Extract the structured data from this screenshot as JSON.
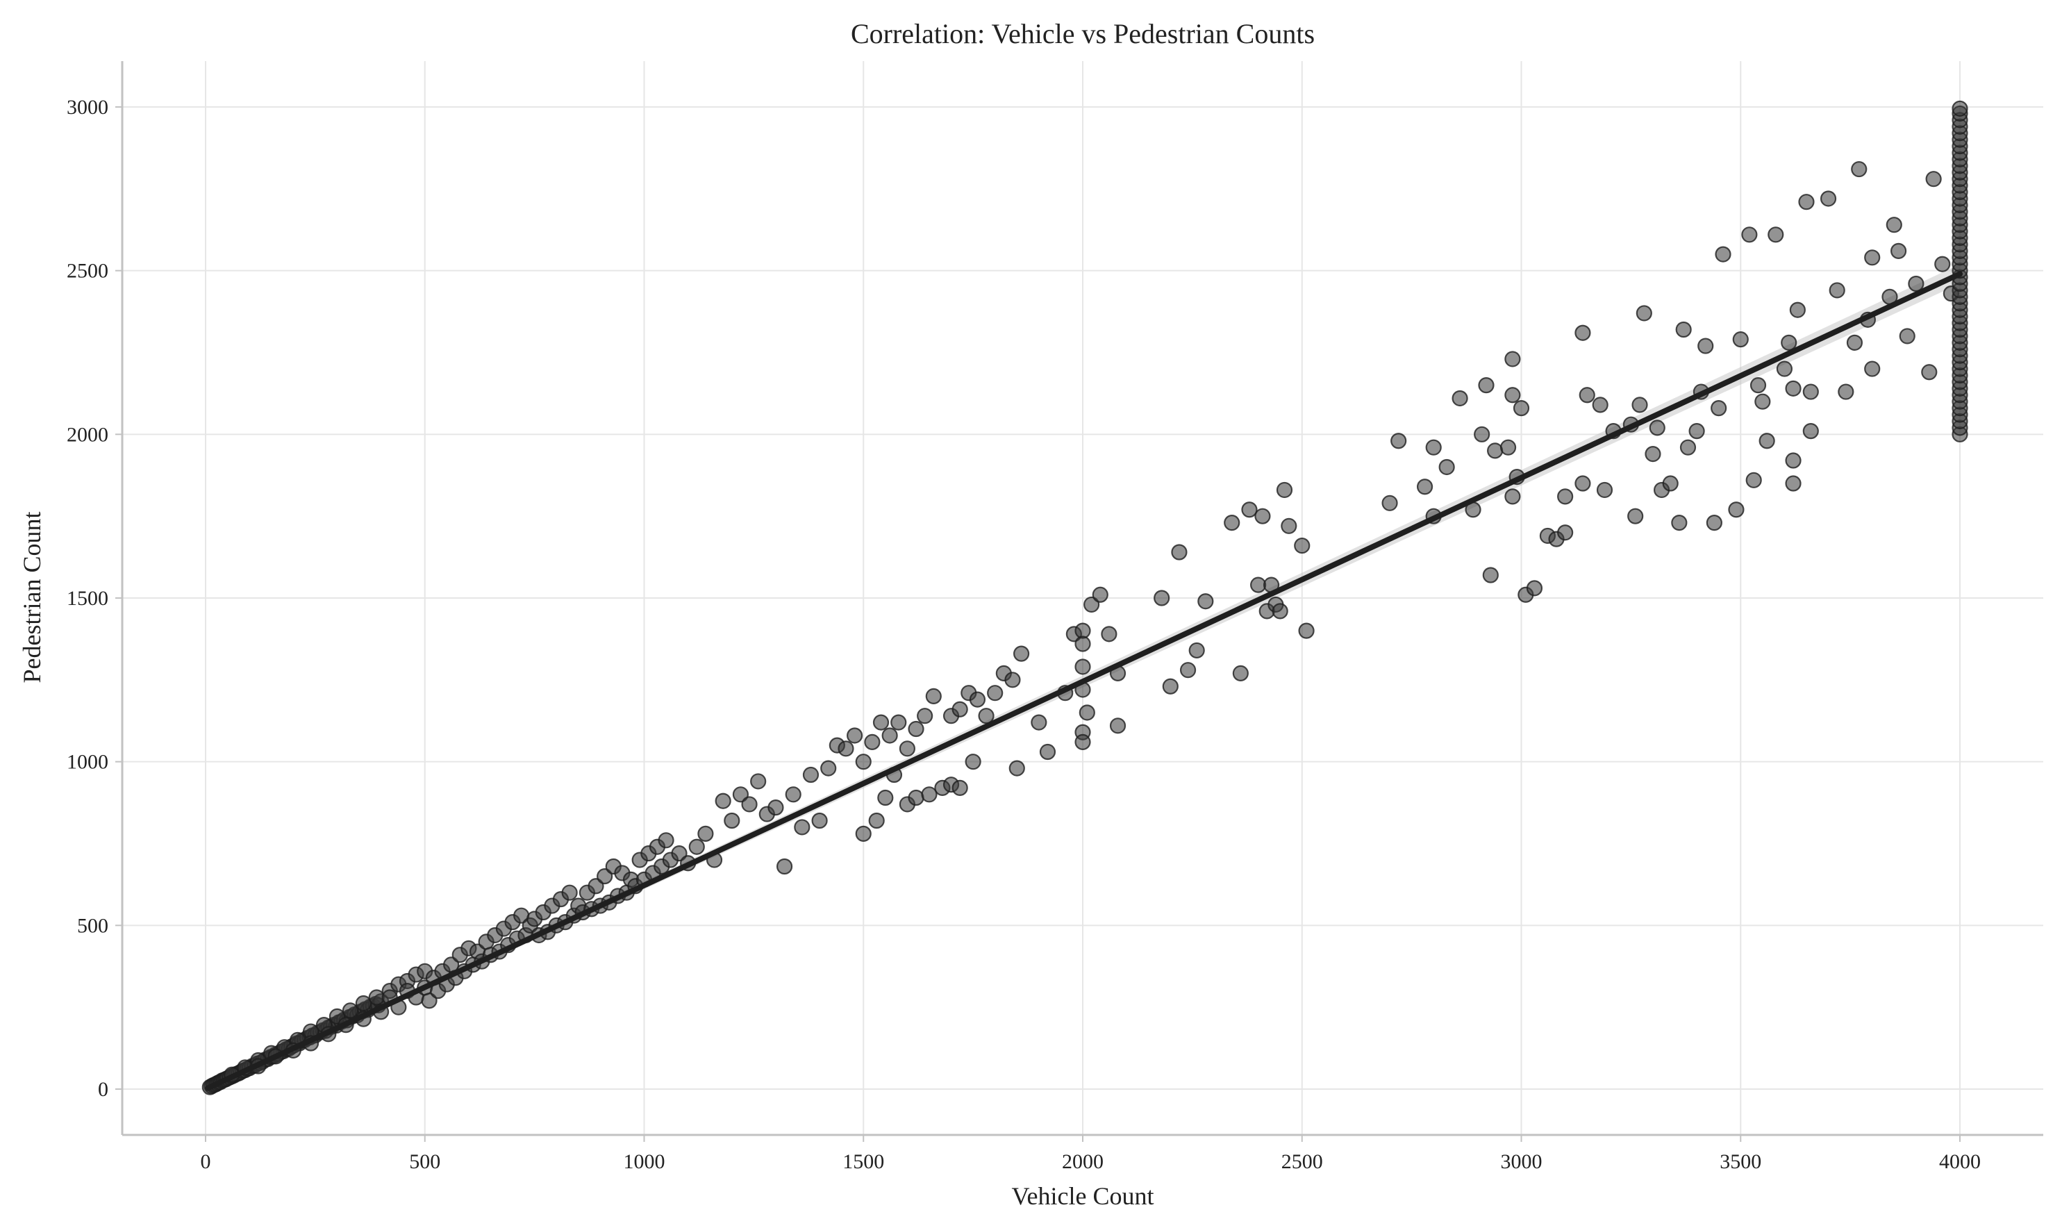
{
  "chart_data": {
    "type": "scatter",
    "title": "Correlation: Vehicle vs Pedestrian Counts",
    "xlabel": "Vehicle Count",
    "ylabel": "Pedestrian Count",
    "xlim": [
      -190,
      4190
    ],
    "ylim": [
      -140,
      3140
    ],
    "xticks": [
      0,
      500,
      1000,
      1500,
      2000,
      2500,
      3000,
      3500,
      4000
    ],
    "yticks": [
      0,
      500,
      1000,
      1500,
      2000,
      2500,
      3000
    ],
    "grid": true,
    "legend": "none",
    "colors": {
      "points": "#3a3a3a",
      "regression": "#1f1f1f",
      "band": "#bdbdbd"
    },
    "regression": {
      "x": [
        5,
        4000
      ],
      "y": [
        3,
        2490
      ]
    },
    "points": [
      [
        10,
        6
      ],
      [
        14,
        9
      ],
      [
        18,
        12
      ],
      [
        22,
        14
      ],
      [
        26,
        17
      ],
      [
        30,
        20
      ],
      [
        34,
        22
      ],
      [
        38,
        26
      ],
      [
        42,
        28
      ],
      [
        46,
        30
      ],
      [
        50,
        33
      ],
      [
        55,
        36
      ],
      [
        60,
        39
      ],
      [
        65,
        42
      ],
      [
        70,
        46
      ],
      [
        75,
        48
      ],
      [
        80,
        52
      ],
      [
        85,
        56
      ],
      [
        90,
        58
      ],
      [
        95,
        62
      ],
      [
        100,
        64
      ],
      [
        106,
        70
      ],
      [
        112,
        72
      ],
      [
        118,
        78
      ],
      [
        124,
        80
      ],
      [
        130,
        84
      ],
      [
        136,
        90
      ],
      [
        142,
        92
      ],
      [
        148,
        98
      ],
      [
        154,
        100
      ],
      [
        160,
        106
      ],
      [
        166,
        108
      ],
      [
        172,
        114
      ],
      [
        178,
        116
      ],
      [
        184,
        122
      ],
      [
        190,
        124
      ],
      [
        196,
        130
      ],
      [
        202,
        134
      ],
      [
        208,
        140
      ],
      [
        214,
        140
      ],
      [
        220,
        148
      ],
      [
        226,
        150
      ],
      [
        232,
        156
      ],
      [
        238,
        158
      ],
      [
        244,
        164
      ],
      [
        250,
        164
      ],
      [
        256,
        172
      ],
      [
        262,
        174
      ],
      [
        268,
        180
      ],
      [
        274,
        178
      ],
      [
        280,
        188
      ],
      [
        286,
        190
      ],
      [
        292,
        196
      ],
      [
        298,
        194
      ],
      [
        304,
        204
      ],
      [
        310,
        206
      ],
      [
        316,
        212
      ],
      [
        322,
        210
      ],
      [
        328,
        220
      ],
      [
        334,
        222
      ],
      [
        340,
        228
      ],
      [
        346,
        226
      ],
      [
        352,
        236
      ],
      [
        358,
        238
      ],
      [
        364,
        244
      ],
      [
        370,
        242
      ],
      [
        376,
        252
      ],
      [
        382,
        254
      ],
      [
        388,
        260
      ],
      [
        394,
        256
      ],
      [
        400,
        268
      ],
      [
        60,
        44
      ],
      [
        90,
        66
      ],
      [
        120,
        88
      ],
      [
        150,
        110
      ],
      [
        180,
        128
      ],
      [
        210,
        150
      ],
      [
        240,
        176
      ],
      [
        270,
        196
      ],
      [
        300,
        222
      ],
      [
        330,
        240
      ],
      [
        360,
        262
      ],
      [
        390,
        280
      ],
      [
        120,
        70
      ],
      [
        160,
        100
      ],
      [
        200,
        118
      ],
      [
        240,
        140
      ],
      [
        280,
        168
      ],
      [
        320,
        196
      ],
      [
        360,
        214
      ],
      [
        400,
        236
      ],
      [
        420,
        300
      ],
      [
        440,
        320
      ],
      [
        460,
        330
      ],
      [
        480,
        350
      ],
      [
        500,
        360
      ],
      [
        420,
        280
      ],
      [
        440,
        250
      ],
      [
        460,
        300
      ],
      [
        480,
        280
      ],
      [
        500,
        310
      ],
      [
        510,
        270
      ],
      [
        520,
        340
      ],
      [
        530,
        300
      ],
      [
        540,
        360
      ],
      [
        550,
        320
      ],
      [
        560,
        380
      ],
      [
        570,
        340
      ],
      [
        580,
        410
      ],
      [
        590,
        360
      ],
      [
        600,
        430
      ],
      [
        610,
        380
      ],
      [
        620,
        420
      ],
      [
        630,
        390
      ],
      [
        640,
        450
      ],
      [
        650,
        410
      ],
      [
        660,
        470
      ],
      [
        670,
        420
      ],
      [
        680,
        490
      ],
      [
        690,
        440
      ],
      [
        700,
        510
      ],
      [
        710,
        460
      ],
      [
        720,
        530
      ],
      [
        730,
        470
      ],
      [
        740,
        500
      ],
      [
        750,
        520
      ],
      [
        760,
        470
      ],
      [
        770,
        540
      ],
      [
        780,
        480
      ],
      [
        790,
        560
      ],
      [
        800,
        500
      ],
      [
        810,
        580
      ],
      [
        820,
        510
      ],
      [
        830,
        600
      ],
      [
        840,
        530
      ],
      [
        850,
        560
      ],
      [
        860,
        540
      ],
      [
        870,
        600
      ],
      [
        880,
        550
      ],
      [
        890,
        620
      ],
      [
        900,
        560
      ],
      [
        910,
        650
      ],
      [
        920,
        570
      ],
      [
        930,
        680
      ],
      [
        940,
        590
      ],
      [
        950,
        660
      ],
      [
        960,
        600
      ],
      [
        970,
        640
      ],
      [
        980,
        620
      ],
      [
        990,
        700
      ],
      [
        1000,
        640
      ],
      [
        1010,
        720
      ],
      [
        1020,
        660
      ],
      [
        1030,
        740
      ],
      [
        1040,
        680
      ],
      [
        1050,
        760
      ],
      [
        1060,
        700
      ],
      [
        1080,
        720
      ],
      [
        1100,
        690
      ],
      [
        1120,
        740
      ],
      [
        1140,
        780
      ],
      [
        1160,
        700
      ],
      [
        1180,
        880
      ],
      [
        1200,
        820
      ],
      [
        1220,
        900
      ],
      [
        1240,
        870
      ],
      [
        1260,
        940
      ],
      [
        1280,
        840
      ],
      [
        1300,
        860
      ],
      [
        1320,
        680
      ],
      [
        1340,
        900
      ],
      [
        1360,
        800
      ],
      [
        1380,
        960
      ],
      [
        1400,
        820
      ],
      [
        1420,
        980
      ],
      [
        1440,
        1050
      ],
      [
        1460,
        1040
      ],
      [
        1480,
        1080
      ],
      [
        1500,
        1000
      ],
      [
        1520,
        1060
      ],
      [
        1540,
        1120
      ],
      [
        1560,
        1080
      ],
      [
        1580,
        1120
      ],
      [
        1600,
        1040
      ],
      [
        1620,
        1100
      ],
      [
        1640,
        1140
      ],
      [
        1660,
        1200
      ],
      [
        1700,
        1140
      ],
      [
        1720,
        1160
      ],
      [
        1740,
        1210
      ],
      [
        1760,
        1190
      ],
      [
        1780,
        1140
      ],
      [
        1800,
        1210
      ],
      [
        1820,
        1270
      ],
      [
        1840,
        1250
      ],
      [
        1860,
        1330
      ],
      [
        1500,
        780
      ],
      [
        1530,
        820
      ],
      [
        1550,
        890
      ],
      [
        1570,
        960
      ],
      [
        1600,
        870
      ],
      [
        1620,
        890
      ],
      [
        1650,
        900
      ],
      [
        1680,
        920
      ],
      [
        1700,
        930
      ],
      [
        1720,
        920
      ],
      [
        1750,
        1000
      ],
      [
        1850,
        980
      ],
      [
        1900,
        1120
      ],
      [
        1920,
        1030
      ],
      [
        1960,
        1210
      ],
      [
        1980,
        1390
      ],
      [
        2000,
        1400
      ],
      [
        2000,
        1360
      ],
      [
        2000,
        1290
      ],
      [
        2000,
        1220
      ],
      [
        2000,
        1090
      ],
      [
        2000,
        1060
      ],
      [
        2010,
        1150
      ],
      [
        2020,
        1480
      ],
      [
        2040,
        1510
      ],
      [
        2060,
        1390
      ],
      [
        2080,
        1270
      ],
      [
        2080,
        1110
      ],
      [
        2180,
        1500
      ],
      [
        2200,
        1230
      ],
      [
        2220,
        1640
      ],
      [
        2240,
        1280
      ],
      [
        2260,
        1340
      ],
      [
        2280,
        1490
      ],
      [
        2340,
        1730
      ],
      [
        2360,
        1270
      ],
      [
        2380,
        1770
      ],
      [
        2400,
        1540
      ],
      [
        2410,
        1750
      ],
      [
        2420,
        1460
      ],
      [
        2430,
        1540
      ],
      [
        2440,
        1480
      ],
      [
        2450,
        1460
      ],
      [
        2460,
        1830
      ],
      [
        2470,
        1720
      ],
      [
        2500,
        1660
      ],
      [
        2510,
        1400
      ],
      [
        2700,
        1790
      ],
      [
        2720,
        1980
      ],
      [
        2780,
        1840
      ],
      [
        2800,
        1960
      ],
      [
        2800,
        1750
      ],
      [
        2830,
        1900
      ],
      [
        2860,
        2110
      ],
      [
        2890,
        1770
      ],
      [
        2910,
        2000
      ],
      [
        2920,
        2150
      ],
      [
        2930,
        1570
      ],
      [
        2940,
        1950
      ],
      [
        2970,
        1960
      ],
      [
        2980,
        2120
      ],
      [
        2980,
        2230
      ],
      [
        2980,
        1810
      ],
      [
        2990,
        1870
      ],
      [
        3000,
        2080
      ],
      [
        3010,
        1510
      ],
      [
        3030,
        1530
      ],
      [
        3060,
        1690
      ],
      [
        3080,
        1680
      ],
      [
        3100,
        1700
      ],
      [
        3100,
        1810
      ],
      [
        3140,
        1850
      ],
      [
        3140,
        2310
      ],
      [
        3150,
        2120
      ],
      [
        3180,
        2090
      ],
      [
        3190,
        1830
      ],
      [
        3210,
        2010
      ],
      [
        3250,
        2030
      ],
      [
        3260,
        1750
      ],
      [
        3270,
        2090
      ],
      [
        3280,
        2370
      ],
      [
        3300,
        1940
      ],
      [
        3310,
        2020
      ],
      [
        3320,
        1830
      ],
      [
        3340,
        1850
      ],
      [
        3360,
        1730
      ],
      [
        3370,
        2320
      ],
      [
        3380,
        1960
      ],
      [
        3400,
        2010
      ],
      [
        3410,
        2130
      ],
      [
        3420,
        2270
      ],
      [
        3440,
        1730
      ],
      [
        3450,
        2080
      ],
      [
        3460,
        2550
      ],
      [
        3490,
        1770
      ],
      [
        3500,
        2290
      ],
      [
        3520,
        2610
      ],
      [
        3530,
        1860
      ],
      [
        3540,
        2150
      ],
      [
        3550,
        2100
      ],
      [
        3560,
        1980
      ],
      [
        3580,
        2610
      ],
      [
        3600,
        2200
      ],
      [
        3610,
        2280
      ],
      [
        3620,
        1920
      ],
      [
        3620,
        1850
      ],
      [
        3620,
        2140
      ],
      [
        3630,
        2380
      ],
      [
        3650,
        2710
      ],
      [
        3660,
        2130
      ],
      [
        3660,
        2010
      ],
      [
        3700,
        2720
      ],
      [
        3720,
        2440
      ],
      [
        3740,
        2130
      ],
      [
        3760,
        2280
      ],
      [
        3770,
        2810
      ],
      [
        3790,
        2350
      ],
      [
        3800,
        2540
      ],
      [
        3800,
        2200
      ],
      [
        3840,
        2420
      ],
      [
        3850,
        2640
      ],
      [
        3860,
        2560
      ],
      [
        3880,
        2300
      ],
      [
        3900,
        2460
      ],
      [
        3930,
        2190
      ],
      [
        3940,
        2780
      ],
      [
        3960,
        2520
      ],
      [
        3980,
        2430
      ],
      [
        4000,
        2000
      ],
      [
        4000,
        2020
      ],
      [
        4000,
        2040
      ],
      [
        4000,
        2060
      ],
      [
        4000,
        2080
      ],
      [
        4000,
        2100
      ],
      [
        4000,
        2120
      ],
      [
        4000,
        2140
      ],
      [
        4000,
        2160
      ],
      [
        4000,
        2180
      ],
      [
        4000,
        2200
      ],
      [
        4000,
        2220
      ],
      [
        4000,
        2240
      ],
      [
        4000,
        2260
      ],
      [
        4000,
        2280
      ],
      [
        4000,
        2300
      ],
      [
        4000,
        2320
      ],
      [
        4000,
        2340
      ],
      [
        4000,
        2360
      ],
      [
        4000,
        2380
      ],
      [
        4000,
        2400
      ],
      [
        4000,
        2420
      ],
      [
        4000,
        2440
      ],
      [
        4000,
        2460
      ],
      [
        4000,
        2480
      ],
      [
        4000,
        2500
      ],
      [
        4000,
        2520
      ],
      [
        4000,
        2540
      ],
      [
        4000,
        2560
      ],
      [
        4000,
        2580
      ],
      [
        4000,
        2600
      ],
      [
        4000,
        2620
      ],
      [
        4000,
        2640
      ],
      [
        4000,
        2660
      ],
      [
        4000,
        2680
      ],
      [
        4000,
        2700
      ],
      [
        4000,
        2720
      ],
      [
        4000,
        2740
      ],
      [
        4000,
        2760
      ],
      [
        4000,
        2780
      ],
      [
        4000,
        2800
      ],
      [
        4000,
        2820
      ],
      [
        4000,
        2840
      ],
      [
        4000,
        2860
      ],
      [
        4000,
        2880
      ],
      [
        4000,
        2900
      ],
      [
        4000,
        2920
      ],
      [
        4000,
        2940
      ],
      [
        4000,
        2960
      ],
      [
        4000,
        2980
      ],
      [
        4000,
        2995
      ]
    ]
  }
}
